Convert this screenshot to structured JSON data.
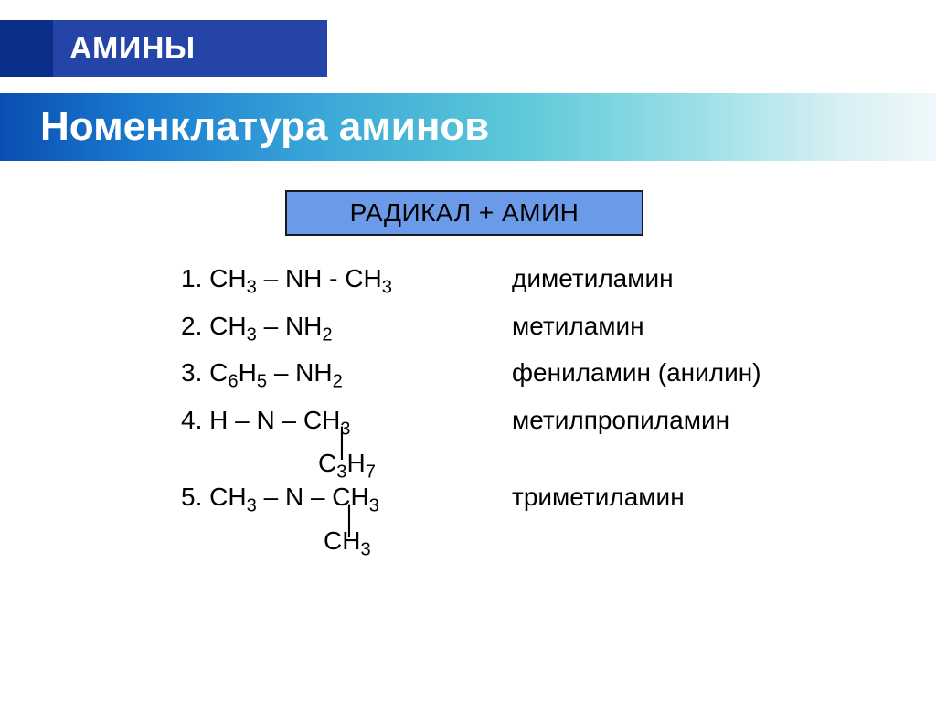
{
  "header": {
    "title": "АМИНЫ",
    "accent_color": "#0a2e8a",
    "main_color": "#2544a8",
    "title_color": "#ffffff",
    "title_fontsize": 34
  },
  "subtitle": {
    "text": "Номенклатура аминов",
    "gradient_from": "#0a4db0",
    "gradient_to": "#f0f8fa",
    "text_color": "#ffffff",
    "fontsize": 44
  },
  "rule": {
    "text": "РАДИКАЛ + АМИН",
    "background": "#6b9ae8",
    "border_color": "#1a1a1a",
    "fontsize": 28
  },
  "items": [
    {
      "num": "1.",
      "formula_html": "CH<sub>3</sub> – NH - CH<sub>3</sub>",
      "name": "диметиламин"
    },
    {
      "num": "2.",
      "formula_html": "CH<sub>3</sub> – NH<sub>2</sub>",
      "name": "метиламин"
    },
    {
      "num": "3.",
      "formula_html": "C<sub>6</sub>H<sub>5</sub> – NH<sub>2</sub>",
      "name": "фениламин (анилин)"
    },
    {
      "num": "4.",
      "formula_html": "H – N – CH<sub>3</sub>",
      "branch_html": "C<sub>3</sub>H<sub>7</sub>",
      "name": "метилпропиламин"
    },
    {
      "num": "5.",
      "formula_html": "CH<sub>3</sub> – N – CH<sub>3</sub>",
      "branch_html": "CH<sub>3</sub>",
      "name": "триметиламин"
    }
  ],
  "content_style": {
    "text_color": "#000000",
    "fontsize": 28
  }
}
